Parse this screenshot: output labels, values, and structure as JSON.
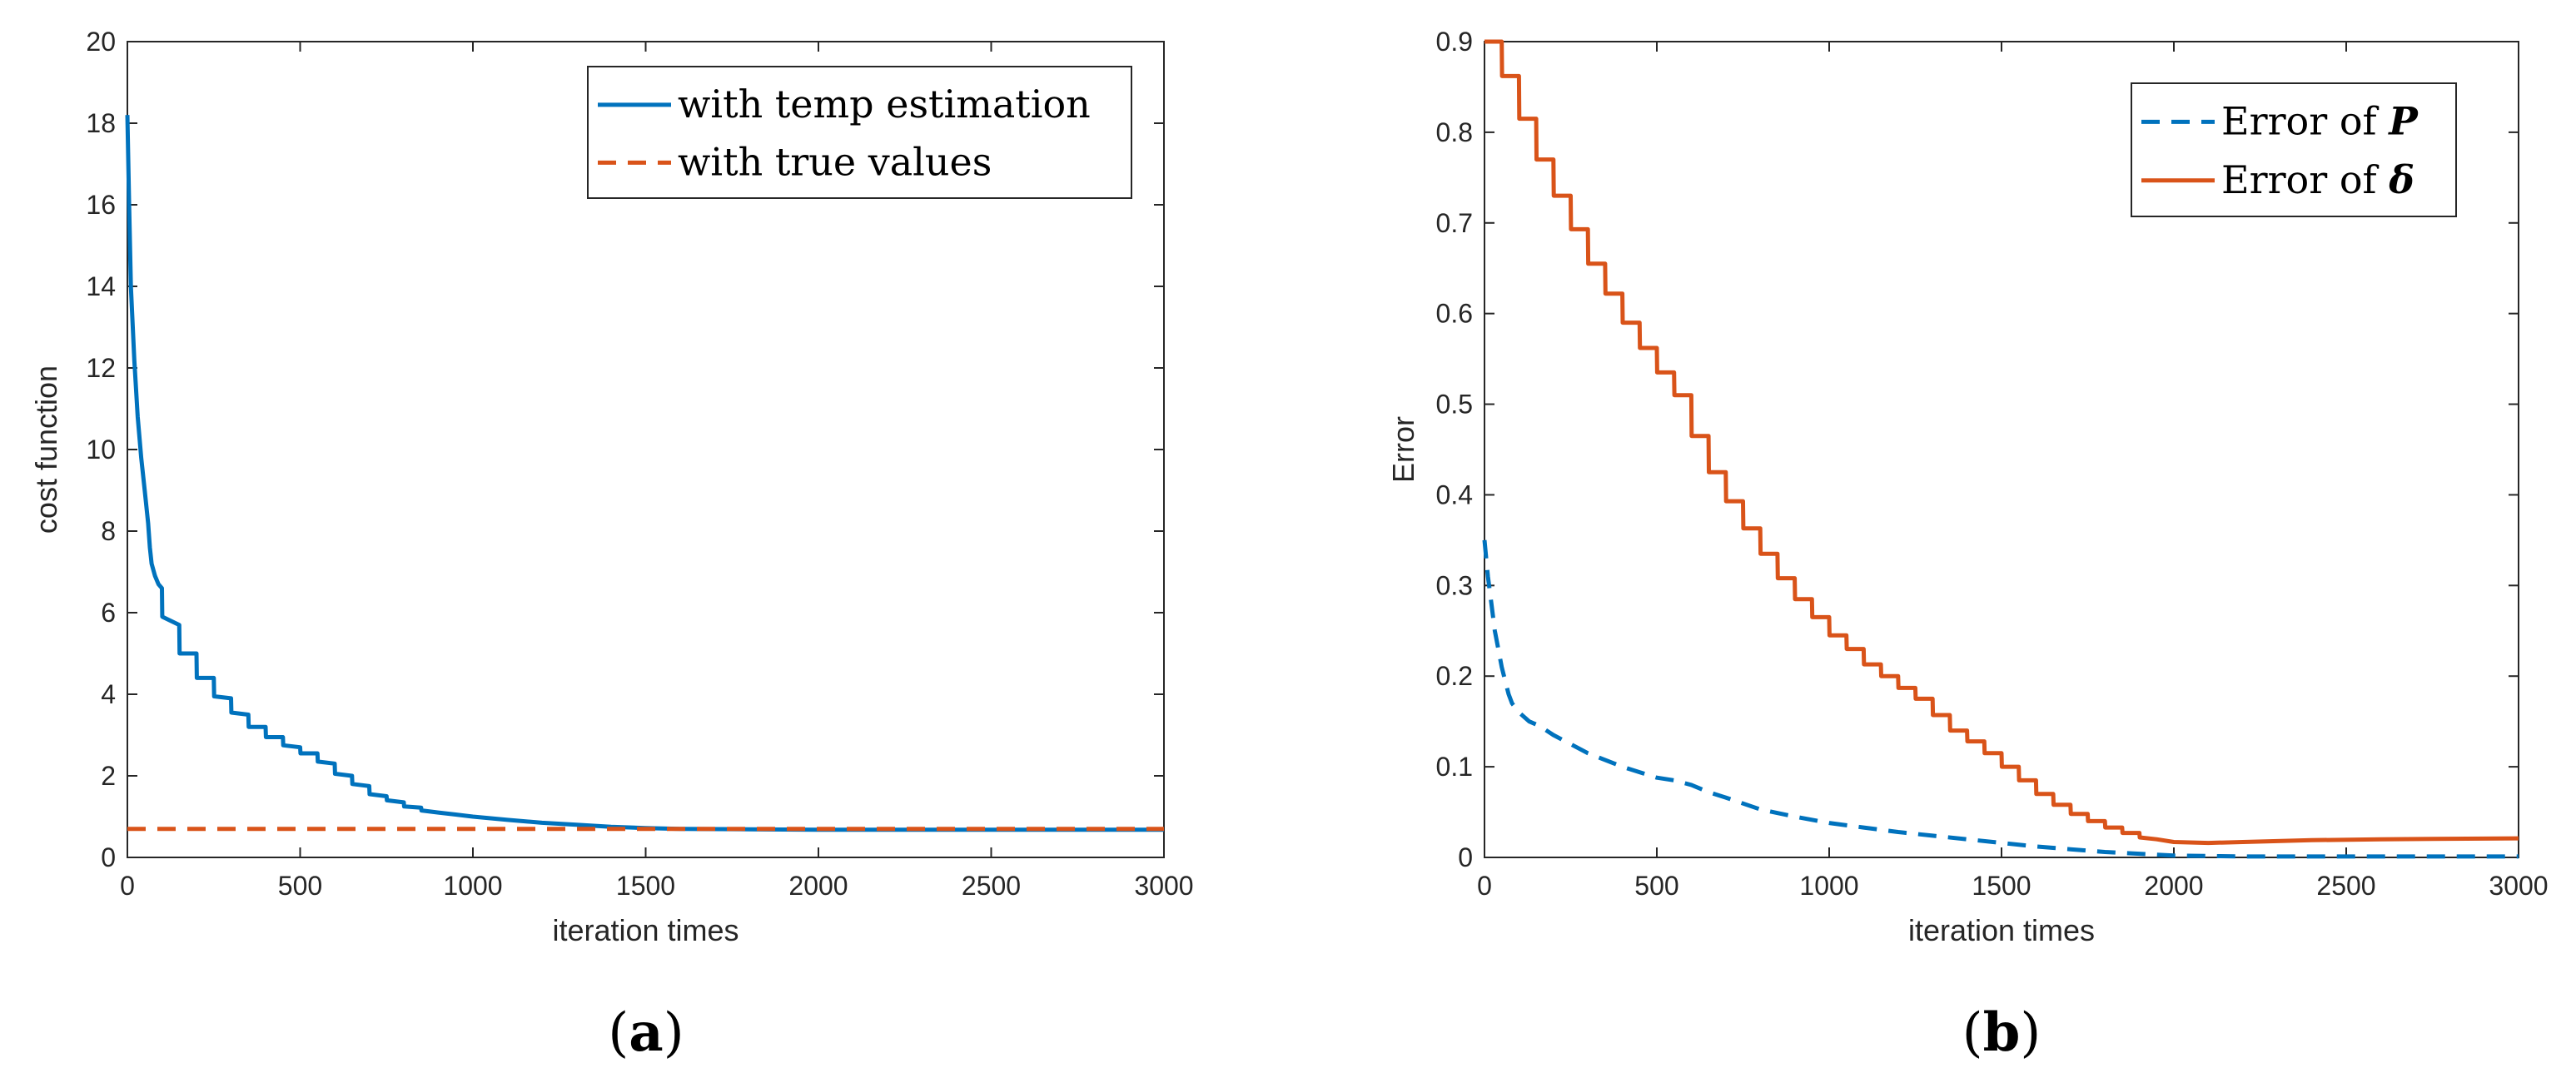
{
  "colors": {
    "blue": "#0072BD",
    "orange": "#D95319",
    "axis": "#262626"
  },
  "chart_data": [
    {
      "type": "line",
      "caption_open": "(",
      "caption_letter": "a",
      "caption_close": ")",
      "xlabel": "iteration times",
      "ylabel": "cost function",
      "xlim": [
        0,
        3000
      ],
      "ylim": [
        0,
        20
      ],
      "xticks": [
        0,
        500,
        1000,
        1500,
        2000,
        2500,
        3000
      ],
      "yticks": [
        0,
        2,
        4,
        6,
        8,
        10,
        12,
        14,
        16,
        18,
        20
      ],
      "legend_position": "top-right",
      "series": [
        {
          "name": "with temp estimation",
          "color": "#0072BD",
          "style": "solid",
          "x": [
            0,
            5,
            10,
            20,
            30,
            40,
            50,
            60,
            65,
            70,
            80,
            90,
            100,
            101,
            150,
            151,
            200,
            201,
            250,
            251,
            300,
            301,
            350,
            351,
            400,
            401,
            450,
            451,
            500,
            501,
            550,
            551,
            600,
            601,
            650,
            651,
            700,
            701,
            750,
            751,
            800,
            801,
            850,
            851,
            900,
            950,
            1000,
            1100,
            1200,
            1300,
            1400,
            1500,
            1600,
            1800,
            2000,
            2500,
            3000
          ],
          "y": [
            18.2,
            16.0,
            14.0,
            12.2,
            10.8,
            9.8,
            9.0,
            8.2,
            7.6,
            7.2,
            6.9,
            6.7,
            6.6,
            5.9,
            5.7,
            5.0,
            5.0,
            4.4,
            4.4,
            3.95,
            3.9,
            3.55,
            3.5,
            3.2,
            3.2,
            2.95,
            2.95,
            2.75,
            2.7,
            2.55,
            2.55,
            2.35,
            2.3,
            2.05,
            2.0,
            1.8,
            1.75,
            1.55,
            1.5,
            1.4,
            1.35,
            1.25,
            1.22,
            1.15,
            1.1,
            1.05,
            1.0,
            0.92,
            0.85,
            0.8,
            0.75,
            0.72,
            0.7,
            0.69,
            0.68,
            0.68,
            0.68
          ]
        },
        {
          "name": "with true values",
          "color": "#D95319",
          "style": "dashed",
          "x": [
            0,
            3000
          ],
          "y": [
            0.7,
            0.7
          ]
        }
      ]
    },
    {
      "type": "line",
      "caption_open": "(",
      "caption_letter": "b",
      "caption_close": ")",
      "xlabel": "iteration times",
      "ylabel": "Error",
      "xlim": [
        0,
        3000
      ],
      "ylim": [
        0,
        0.9
      ],
      "xticks": [
        0,
        500,
        1000,
        1500,
        2000,
        2500,
        3000
      ],
      "yticks": [
        0,
        0.1,
        0.2,
        0.3,
        0.4,
        0.5,
        0.6,
        0.7,
        0.8,
        0.9
      ],
      "legend_position": "top-right",
      "series": [
        {
          "name_prefix": "Error of ",
          "name_symbol": "P",
          "color": "#0072BD",
          "style": "dashed",
          "x": [
            0,
            10,
            20,
            30,
            40,
            50,
            60,
            70,
            80,
            100,
            130,
            160,
            200,
            250,
            300,
            400,
            500,
            550,
            600,
            650,
            700,
            800,
            900,
            1000,
            1100,
            1200,
            1300,
            1400,
            1500,
            1600,
            1700,
            1800,
            1900,
            2000,
            2200,
            2500,
            3000
          ],
          "y": [
            0.35,
            0.31,
            0.28,
            0.25,
            0.23,
            0.21,
            0.195,
            0.18,
            0.17,
            0.16,
            0.15,
            0.145,
            0.135,
            0.125,
            0.115,
            0.1,
            0.088,
            0.085,
            0.08,
            0.072,
            0.066,
            0.053,
            0.045,
            0.038,
            0.033,
            0.028,
            0.024,
            0.02,
            0.016,
            0.012,
            0.009,
            0.006,
            0.004,
            0.002,
            0.001,
            0.001,
            0.001
          ]
        },
        {
          "name_prefix": "Error of ",
          "name_symbol": "δ",
          "color": "#D95319",
          "style": "solid",
          "x": [
            0,
            50,
            51,
            100,
            101,
            150,
            151,
            200,
            201,
            250,
            251,
            300,
            301,
            350,
            351,
            400,
            401,
            450,
            451,
            500,
            501,
            550,
            551,
            600,
            601,
            650,
            651,
            700,
            701,
            750,
            751,
            800,
            801,
            850,
            851,
            900,
            901,
            950,
            951,
            1000,
            1001,
            1050,
            1051,
            1100,
            1101,
            1150,
            1151,
            1200,
            1201,
            1250,
            1251,
            1300,
            1301,
            1350,
            1351,
            1400,
            1401,
            1450,
            1451,
            1500,
            1501,
            1550,
            1551,
            1600,
            1601,
            1650,
            1651,
            1700,
            1701,
            1750,
            1751,
            1800,
            1801,
            1850,
            1851,
            1900,
            1901,
            1950,
            2000,
            2100,
            2200,
            2400,
            2600,
            3000
          ],
          "y": [
            0.9,
            0.9,
            0.862,
            0.862,
            0.815,
            0.815,
            0.77,
            0.77,
            0.73,
            0.73,
            0.693,
            0.693,
            0.655,
            0.655,
            0.622,
            0.622,
            0.59,
            0.59,
            0.562,
            0.562,
            0.535,
            0.535,
            0.51,
            0.51,
            0.465,
            0.465,
            0.425,
            0.425,
            0.393,
            0.393,
            0.363,
            0.363,
            0.335,
            0.335,
            0.308,
            0.308,
            0.285,
            0.285,
            0.265,
            0.265,
            0.245,
            0.245,
            0.23,
            0.23,
            0.213,
            0.213,
            0.2,
            0.2,
            0.187,
            0.187,
            0.175,
            0.175,
            0.157,
            0.157,
            0.14,
            0.14,
            0.128,
            0.128,
            0.115,
            0.115,
            0.1,
            0.1,
            0.085,
            0.085,
            0.07,
            0.07,
            0.058,
            0.058,
            0.048,
            0.048,
            0.04,
            0.04,
            0.033,
            0.033,
            0.027,
            0.027,
            0.022,
            0.02,
            0.017,
            0.016,
            0.017,
            0.019,
            0.02,
            0.021
          ]
        }
      ]
    }
  ]
}
